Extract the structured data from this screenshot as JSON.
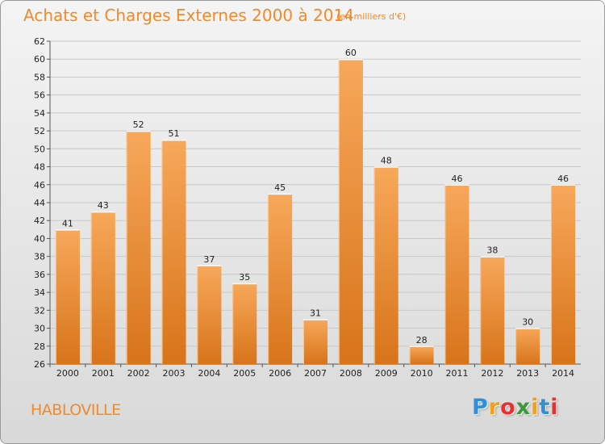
{
  "header": {
    "title": "Achats et Charges Externes 2000 à 2014",
    "subtitle": "(en milliers d'€)"
  },
  "footer": {
    "commune": "HABLOVILLE",
    "logo_letters": [
      {
        "ch": "P",
        "color": "#2f8fd8"
      },
      {
        "ch": "r",
        "color": "#f0a020"
      },
      {
        "ch": "o",
        "color": "#e83030"
      },
      {
        "ch": "x",
        "color": "#3a9a3a"
      },
      {
        "ch": "i",
        "color": "#f0a020"
      },
      {
        "ch": "t",
        "color": "#2f8fd8"
      },
      {
        "ch": "i",
        "color": "#e83030"
      }
    ]
  },
  "colors": {
    "accent": "#f08a2a",
    "bar_light": "#f7a85a",
    "bar_dark": "#d8741a",
    "grid": "#c8c8c8"
  },
  "chart_data": {
    "type": "bar",
    "title": "Achats et Charges Externes 2000 à 2014",
    "subtitle": "(en milliers d'€)",
    "categories": [
      "2000",
      "2001",
      "2002",
      "2003",
      "2004",
      "2005",
      "2006",
      "2007",
      "2008",
      "2009",
      "2010",
      "2011",
      "2012",
      "2013",
      "2014"
    ],
    "values": [
      41,
      43,
      52,
      51,
      37,
      35,
      45,
      31,
      60,
      48,
      28,
      46,
      38,
      30,
      46
    ],
    "ylim": [
      26,
      62
    ],
    "yticks": [
      26,
      28,
      30,
      32,
      34,
      36,
      38,
      40,
      42,
      44,
      46,
      48,
      50,
      52,
      54,
      56,
      58,
      60,
      62
    ],
    "grid": true,
    "data_labels": true
  }
}
